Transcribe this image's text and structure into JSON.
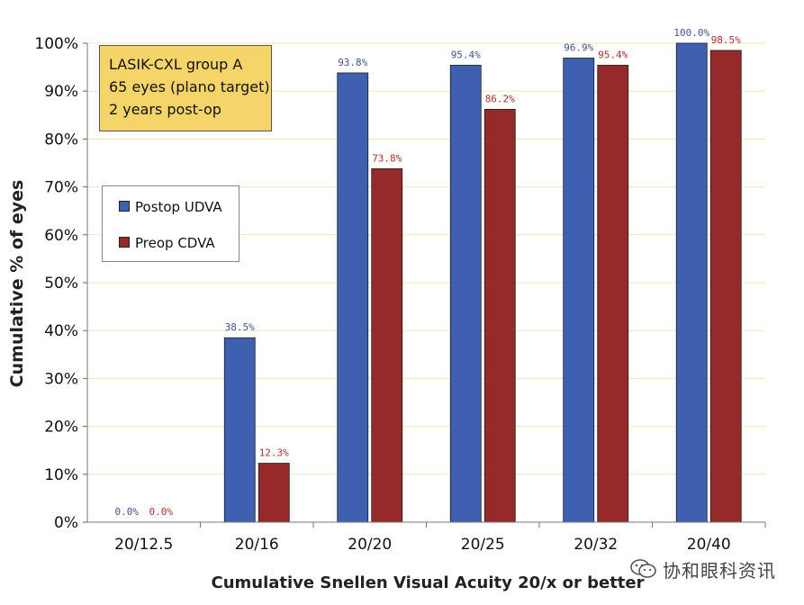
{
  "chart_data": {
    "type": "bar",
    "title": "",
    "xlabel": "Cumulative Snellen Visual Acuity 20/x or better",
    "ylabel": "Cumulative % of eyes",
    "categories": [
      "20/12.5",
      "20/16",
      "20/20",
      "20/25",
      "20/32",
      "20/40"
    ],
    "ylim": [
      0,
      100
    ],
    "yticks": [
      0,
      10,
      20,
      30,
      40,
      50,
      60,
      70,
      80,
      90,
      100
    ],
    "ytick_labels": [
      "0%",
      "10%",
      "20%",
      "30%",
      "40%",
      "50%",
      "60%",
      "70%",
      "80%",
      "90%",
      "100%"
    ],
    "grid": true,
    "legend_position": "middle-left",
    "series": [
      {
        "name": "Postop UDVA",
        "color": "#3f5fb0",
        "label_color": "#3f5591",
        "values": [
          0,
          38.5,
          93.8,
          95.4,
          96.9,
          100
        ],
        "labels": [
          "0.0%",
          "38.5%",
          "93.8%",
          "95.4%",
          "96.9%",
          "100.0%"
        ]
      },
      {
        "name": "Preop CDVA",
        "color": "#962a2a",
        "label_color": "#a8322e",
        "values": [
          0,
          12.3,
          73.8,
          86.2,
          95.4,
          98.5
        ],
        "labels": [
          "0.0%",
          "12.3%",
          "73.8%",
          "86.2%",
          "95.4%",
          "98.5%"
        ]
      }
    ],
    "annotation_lines": [
      "LASIK-CXL group A",
      "65 eyes (plano target)",
      "2 years post-op"
    ]
  },
  "watermark": {
    "icon": "wechat-icon",
    "text": "协和眼科资讯"
  }
}
